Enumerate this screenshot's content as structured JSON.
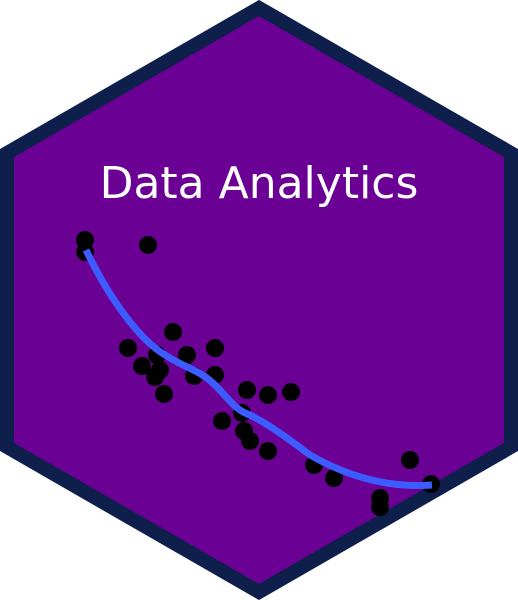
{
  "title": "Data Analytics",
  "colors": {
    "hex_fill": "#6a0094",
    "hex_border": "#0e1f4b",
    "points": "#000000",
    "trend_line": "#3d5cff",
    "title_text": "#ffffff"
  }
}
